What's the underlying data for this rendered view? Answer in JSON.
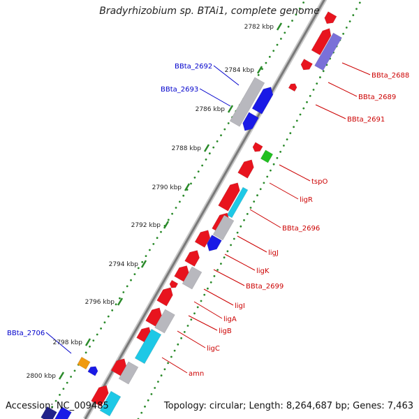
{
  "title": "Bradyrhizobium sp. BTAi1, complete genome",
  "accession": "Accession: NC_009485",
  "topology": "Topology: circular; Length: 8,264,687 bp; Genes: 7,463",
  "colors": {
    "red": "#e8141e",
    "blue": "#1a1ae6",
    "gray": "#b8b8be",
    "cyan": "#1ec8e6",
    "green": "#20c020",
    "orange": "#f09a10",
    "violet": "#7a70d8",
    "dark_blue": "#22228a",
    "label_red": "#cc0000",
    "label_blue": "#0000cc",
    "tick_green": "#2a8a2a"
  },
  "kbp_ticks": [
    "2782 kbp",
    "2784 kbp",
    "2786 kbp",
    "2788 kbp",
    "2790 kbp",
    "2792 kbp",
    "2794 kbp",
    "2796 kbp",
    "2798 kbp",
    "2800 kbp"
  ],
  "gene_labels": [
    {
      "text": "BBta_2688",
      "color": "red"
    },
    {
      "text": "BBta_2689",
      "color": "red"
    },
    {
      "text": "BBta_2691",
      "color": "red"
    },
    {
      "text": "BBta_2692",
      "color": "blue"
    },
    {
      "text": "BBta_2693",
      "color": "blue"
    },
    {
      "text": "tspO",
      "color": "red"
    },
    {
      "text": "ligR",
      "color": "red"
    },
    {
      "text": "BBta_2696",
      "color": "red"
    },
    {
      "text": "ligJ",
      "color": "red"
    },
    {
      "text": "ligK",
      "color": "red"
    },
    {
      "text": "BBta_2699",
      "color": "red"
    },
    {
      "text": "ligI",
      "color": "red"
    },
    {
      "text": "ligA",
      "color": "red"
    },
    {
      "text": "ligB",
      "color": "red"
    },
    {
      "text": "ligC",
      "color": "red"
    },
    {
      "text": "amn",
      "color": "red"
    },
    {
      "text": "BBta_2706",
      "color": "blue"
    }
  ]
}
